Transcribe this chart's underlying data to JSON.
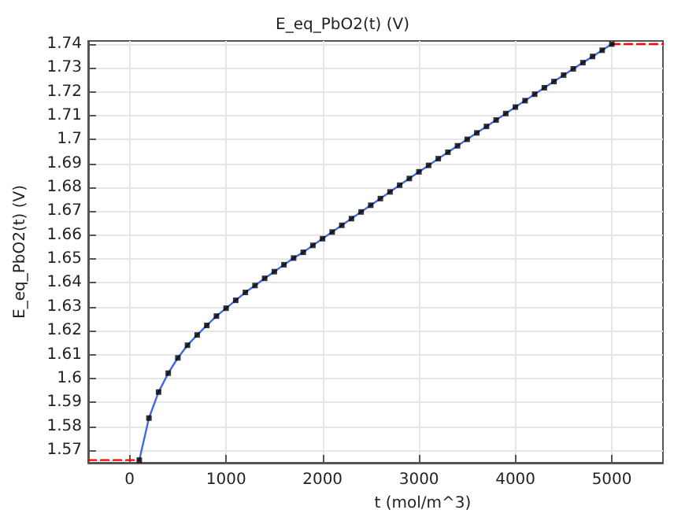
{
  "chart_data": {
    "type": "line",
    "title": "E_eq_PbO2(t) (V)",
    "xlabel": "t (mol/m^3)",
    "ylabel": "E_eq_PbO2(t) (V)",
    "x": [
      100,
      200,
      300,
      400,
      500,
      600,
      700,
      800,
      900,
      1000,
      1100,
      1200,
      1300,
      1400,
      1500,
      1600,
      1700,
      1800,
      1900,
      2000,
      2100,
      2200,
      2300,
      2400,
      2500,
      2600,
      2700,
      2800,
      2900,
      3000,
      3100,
      3200,
      3300,
      3400,
      3500,
      3600,
      3700,
      3800,
      3900,
      4000,
      4100,
      4200,
      4300,
      4400,
      4500,
      4600,
      4700,
      4800,
      4900,
      5000
    ],
    "series": [
      {
        "color": "#4169e1",
        "marker": "none",
        "line_style": "solid",
        "values": [
          1.5658,
          1.5834,
          1.5943,
          1.6022,
          1.6086,
          1.6139,
          1.6182,
          1.6222,
          1.6261,
          1.6294,
          1.6327,
          1.636,
          1.6389,
          1.6419,
          1.6447,
          1.6476,
          1.6504,
          1.6528,
          1.6557,
          1.6585,
          1.6613,
          1.6641,
          1.6669,
          1.6697,
          1.6725,
          1.6753,
          1.6781,
          1.6809,
          1.6837,
          1.6865,
          1.6892,
          1.692,
          1.6947,
          1.6974,
          1.7001,
          1.7028,
          1.7055,
          1.7082,
          1.7109,
          1.7136,
          1.7163,
          1.719,
          1.7217,
          1.7243,
          1.727,
          1.7296,
          1.7322,
          1.7348,
          1.7374,
          1.74
        ]
      },
      {
        "type": "scatter",
        "color": "#000000",
        "marker": "square",
        "values": [
          1.5658,
          1.5834,
          1.5943,
          1.6022,
          1.6086,
          1.6139,
          1.6182,
          1.6222,
          1.6261,
          1.6294,
          1.6327,
          1.636,
          1.6389,
          1.6419,
          1.6447,
          1.6476,
          1.6504,
          1.6528,
          1.6557,
          1.6585,
          1.6613,
          1.6641,
          1.6669,
          1.6697,
          1.6725,
          1.6753,
          1.6781,
          1.6809,
          1.6837,
          1.6865,
          1.6892,
          1.692,
          1.6947,
          1.6974,
          1.7001,
          1.7028,
          1.7055,
          1.7082,
          1.7109,
          1.7136,
          1.7163,
          1.719,
          1.7217,
          1.7243,
          1.727,
          1.7296,
          1.7322,
          1.7348,
          1.7374,
          1.74
        ]
      },
      {
        "type": "line",
        "color": "#ff0000",
        "marker": "none",
        "line_style": "dashed",
        "x": [
          -430,
          100
        ],
        "values": [
          1.5658,
          1.5658
        ]
      },
      {
        "type": "line",
        "color": "#ff0000",
        "marker": "none",
        "line_style": "dashed",
        "x": [
          5000,
          5530
        ],
        "values": [
          1.74,
          1.74
        ]
      }
    ],
    "xlim": [
      -430,
      5530
    ],
    "xticks": [
      0,
      1000,
      2000,
      3000,
      4000,
      5000
    ],
    "ylim": [
      1.5647,
      1.7413
    ],
    "yticks": [
      1.57,
      1.58,
      1.59,
      1.6,
      1.61,
      1.62,
      1.63,
      1.64,
      1.65,
      1.66,
      1.67,
      1.68,
      1.69,
      1.7,
      1.71,
      1.72,
      1.73,
      1.74
    ],
    "grid": true
  }
}
